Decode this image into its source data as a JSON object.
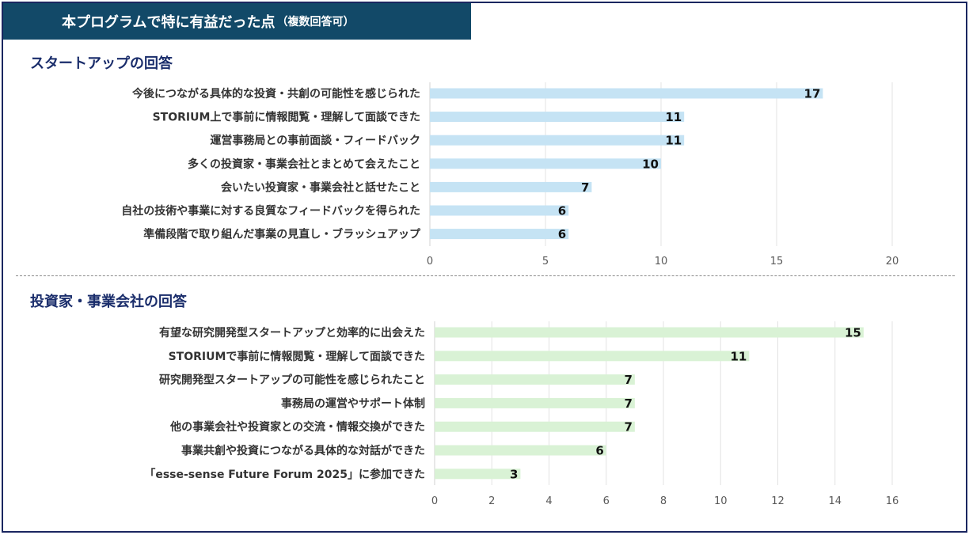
{
  "title": {
    "main": "本プログラムで特に有益だった点",
    "sub": "（複数回答可）"
  },
  "chart_data": [
    {
      "type": "bar",
      "orientation": "horizontal",
      "title": "スタートアップの回答",
      "categories": [
        "今後につながる具体的な投資・共創の可能性を感じられた",
        "STORIUM上で事前に情報閲覧・理解して面談できた",
        "運営事務局との事前面談・フィードバック",
        "多くの投資家・事業会社とまとめて会えたこと",
        "会いたい投資家・事業会社と話せたこと",
        "自社の技術や事業に対する良質なフィードバックを得られた",
        "準備段階で取り組んだ事業の見直し・ブラッシュアップ"
      ],
      "values": [
        17,
        11,
        11,
        10,
        7,
        6,
        6
      ],
      "xlim": [
        0,
        20
      ],
      "ticks": [
        0,
        5,
        10,
        15,
        20
      ],
      "grid": true,
      "bar_color": "#c5e3f4"
    },
    {
      "type": "bar",
      "orientation": "horizontal",
      "title": "投資家・事業会社の回答",
      "categories": [
        "有望な研究開発型スタートアップと効率的に出会えた",
        "STORIUMで事前に情報閲覧・理解して面談できた",
        "研究開発型スタートアップの可能性を感じられたこと",
        "事務局の運営やサポート体制",
        "他の事業会社や投資家との交流・情報交換ができた",
        "事業共創や投資につながる具体的な対話ができた",
        "「esse-sense Future Forum 2025」に参加できた"
      ],
      "values": [
        15,
        11,
        7,
        7,
        7,
        6,
        3
      ],
      "xlim": [
        0,
        16
      ],
      "ticks": [
        0,
        2,
        4,
        6,
        8,
        10,
        12,
        14,
        16
      ],
      "grid": true,
      "bar_color": "#d9f2d5"
    }
  ]
}
